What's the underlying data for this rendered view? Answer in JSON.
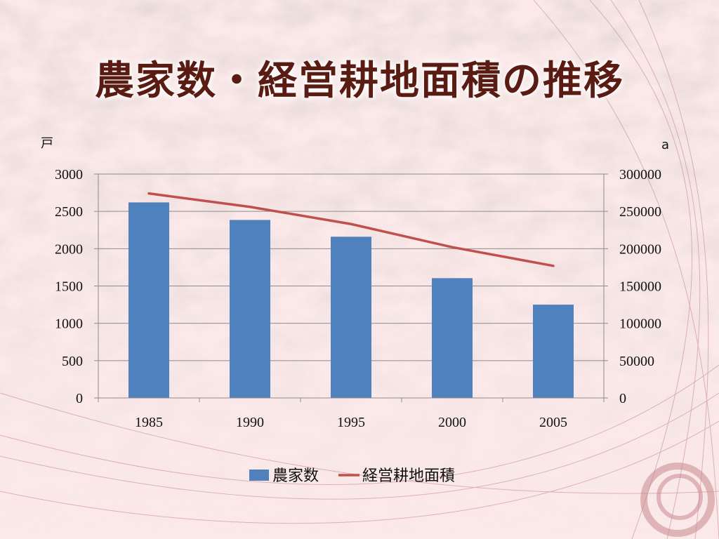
{
  "slide": {
    "title": "農家数・経営耕地面積の推移"
  },
  "colors": {
    "bar": "#4f81bd",
    "line": "#c0504d",
    "title": "#5a1b12",
    "grid": "#8c8c8c"
  },
  "chart_data": {
    "type": "bar+line",
    "title": "",
    "categories": [
      "1985",
      "1990",
      "1995",
      "2000",
      "2005"
    ],
    "y_left": {
      "unit_label": "戸",
      "ylim": [
        0,
        3000
      ],
      "ticks": [
        0,
        500,
        1000,
        1500,
        2000,
        2500,
        3000
      ]
    },
    "y_right": {
      "unit_label": "a",
      "ylim": [
        0,
        300000
      ],
      "ticks": [
        0,
        50000,
        100000,
        150000,
        200000,
        250000,
        300000
      ]
    },
    "grid": true,
    "legend_position": "bottom",
    "series": [
      {
        "name": "農家数",
        "type": "bar",
        "axis": "left",
        "values": [
          2620,
          2385,
          2160,
          1605,
          1250
        ]
      },
      {
        "name": "経営耕地面積",
        "type": "line",
        "axis": "right",
        "values": [
          274000,
          256000,
          233000,
          202000,
          177000
        ]
      }
    ]
  }
}
